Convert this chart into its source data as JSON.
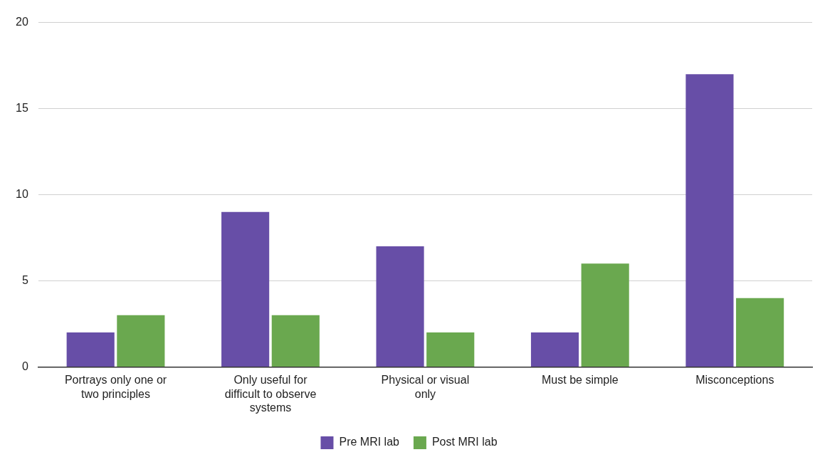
{
  "chart_data": {
    "type": "bar",
    "categories": [
      "Portrays only one or two principles",
      "Only useful for difficult to observe systems",
      "Physical or visual only",
      "Must be simple",
      "Misconceptions"
    ],
    "series": [
      {
        "name": "Pre MRI lab",
        "color": "#674ea7",
        "values": [
          2,
          9,
          7,
          2,
          17
        ]
      },
      {
        "name": "Post MRI lab",
        "color": "#6aa84f",
        "values": [
          3,
          3,
          2,
          6,
          4
        ]
      }
    ],
    "ylim": [
      0,
      20
    ],
    "yticks": [
      0,
      5,
      10,
      15,
      20
    ],
    "grid": "y",
    "legend": "bottom"
  }
}
